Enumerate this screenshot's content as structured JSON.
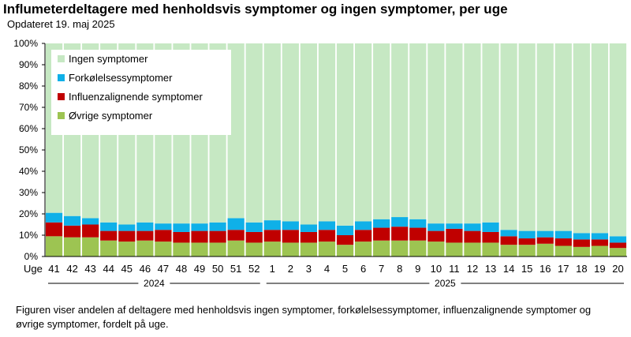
{
  "chart_data": {
    "type": "bar",
    "stacked": true,
    "title": "Influmeterdeltagere med henholdsvis symptomer og ingen symptomer, per uge",
    "subtitle": "Opdateret 19. maj 2025",
    "xlabel": "Uge",
    "ylabel": "",
    "ylim": [
      0,
      100
    ],
    "yticks": [
      "0%",
      "10%",
      "20%",
      "30%",
      "40%",
      "50%",
      "60%",
      "70%",
      "80%",
      "90%",
      "100%"
    ],
    "categories": [
      "41",
      "42",
      "43",
      "44",
      "45",
      "46",
      "47",
      "48",
      "49",
      "50",
      "51",
      "52",
      "1",
      "2",
      "3",
      "4",
      "5",
      "6",
      "7",
      "8",
      "9",
      "10",
      "11",
      "12",
      "13",
      "14",
      "15",
      "16",
      "17",
      "18",
      "19",
      "20"
    ],
    "year_groups": [
      {
        "label": "2024",
        "start": 0,
        "end": 11
      },
      {
        "label": "2025",
        "start": 12,
        "end": 31
      }
    ],
    "legend_position": "top-left",
    "series": [
      {
        "name": "Øvrige symptomer",
        "color": "#9dc452",
        "values": [
          9.5,
          9,
          9,
          7.5,
          7,
          7.5,
          7,
          6.5,
          6.5,
          6.5,
          7.5,
          6.5,
          7,
          6.5,
          6.5,
          7,
          5.5,
          7,
          7.5,
          7.5,
          7.5,
          7,
          6.5,
          6.5,
          6.5,
          5.5,
          5.5,
          6,
          5,
          4.5,
          5,
          4
        ]
      },
      {
        "name": "Influenzalignende symptomer",
        "color": "#c00000",
        "values": [
          6.5,
          5.5,
          6,
          4.5,
          5,
          4.5,
          5.5,
          5,
          5.5,
          5.5,
          5,
          5,
          5.5,
          6,
          5,
          5.5,
          4.5,
          5.5,
          6,
          6.5,
          6,
          5,
          6.5,
          5.5,
          5,
          4,
          3,
          3,
          3.5,
          3.5,
          3,
          2.5
        ]
      },
      {
        "name": "Forkølelsessymptomer",
        "color": "#0fb0e8",
        "values": [
          4.5,
          4.5,
          3,
          4,
          3,
          4,
          3,
          4,
          3.5,
          4,
          5.5,
          4.5,
          4.5,
          4,
          3.5,
          4,
          4.5,
          4,
          4,
          4.5,
          4,
          3.5,
          2.5,
          3.5,
          4.5,
          3,
          3.5,
          3,
          3.5,
          3,
          3,
          3
        ]
      },
      {
        "name": "Ingen symptomer",
        "color": "#c6e8c3",
        "values": [
          79.5,
          81,
          82,
          84,
          85,
          84,
          84.5,
          84.5,
          84.5,
          84,
          82,
          84,
          83,
          83.5,
          85,
          83.5,
          85.5,
          83.5,
          82.5,
          81.5,
          82.5,
          84.5,
          84.5,
          84.5,
          84,
          87.5,
          88,
          88,
          88,
          89,
          89,
          90.5
        ]
      }
    ]
  },
  "caption": "Figuren viser andelen af deltagere med henholdsvis ingen symptomer, forkølelsessymptomer, influenzalignende symptomer og øvrige symptomer, fordelt på uge."
}
